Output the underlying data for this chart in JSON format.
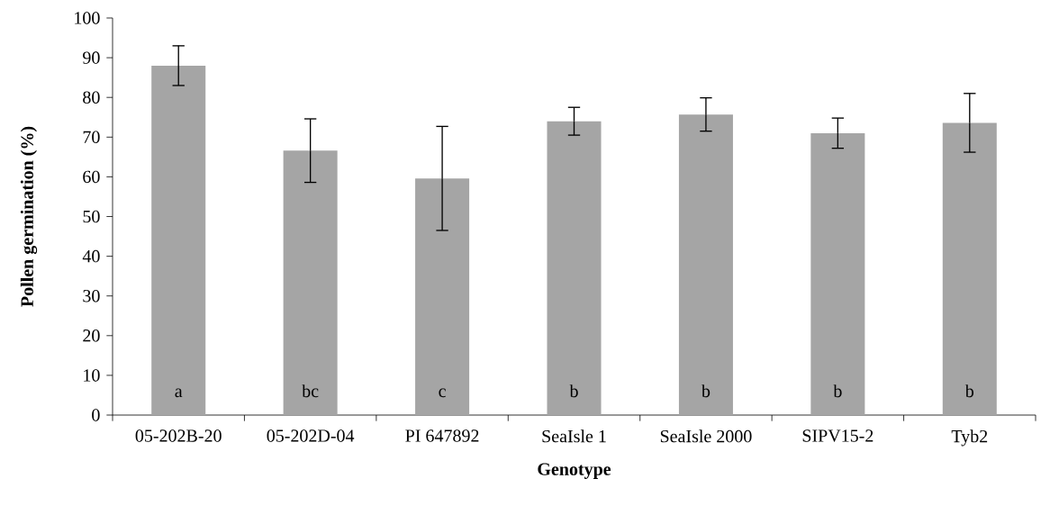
{
  "chart_data": {
    "type": "bar",
    "xlabel": "Genotype",
    "ylabel": "Pollen germination (%)",
    "categories": [
      "05-202B-20",
      "05-202D-04",
      "PI 647892",
      "SeaIsle 1",
      "SeaIsle 2000",
      "SIPV15-2",
      "Tyb2"
    ],
    "values": [
      88.0,
      66.6,
      59.6,
      74.0,
      75.7,
      71.0,
      73.6
    ],
    "errors": [
      5.0,
      8.0,
      13.1,
      3.5,
      4.2,
      3.8,
      7.4
    ],
    "color": "#a5a5a5",
    "ylim": [
      0,
      100
    ],
    "yticks": [
      0,
      10,
      20,
      30,
      40,
      50,
      60,
      70,
      80,
      90,
      100
    ],
    "annotations": [
      "a",
      "bc",
      "c",
      "b",
      "b",
      "b",
      "b"
    ]
  }
}
